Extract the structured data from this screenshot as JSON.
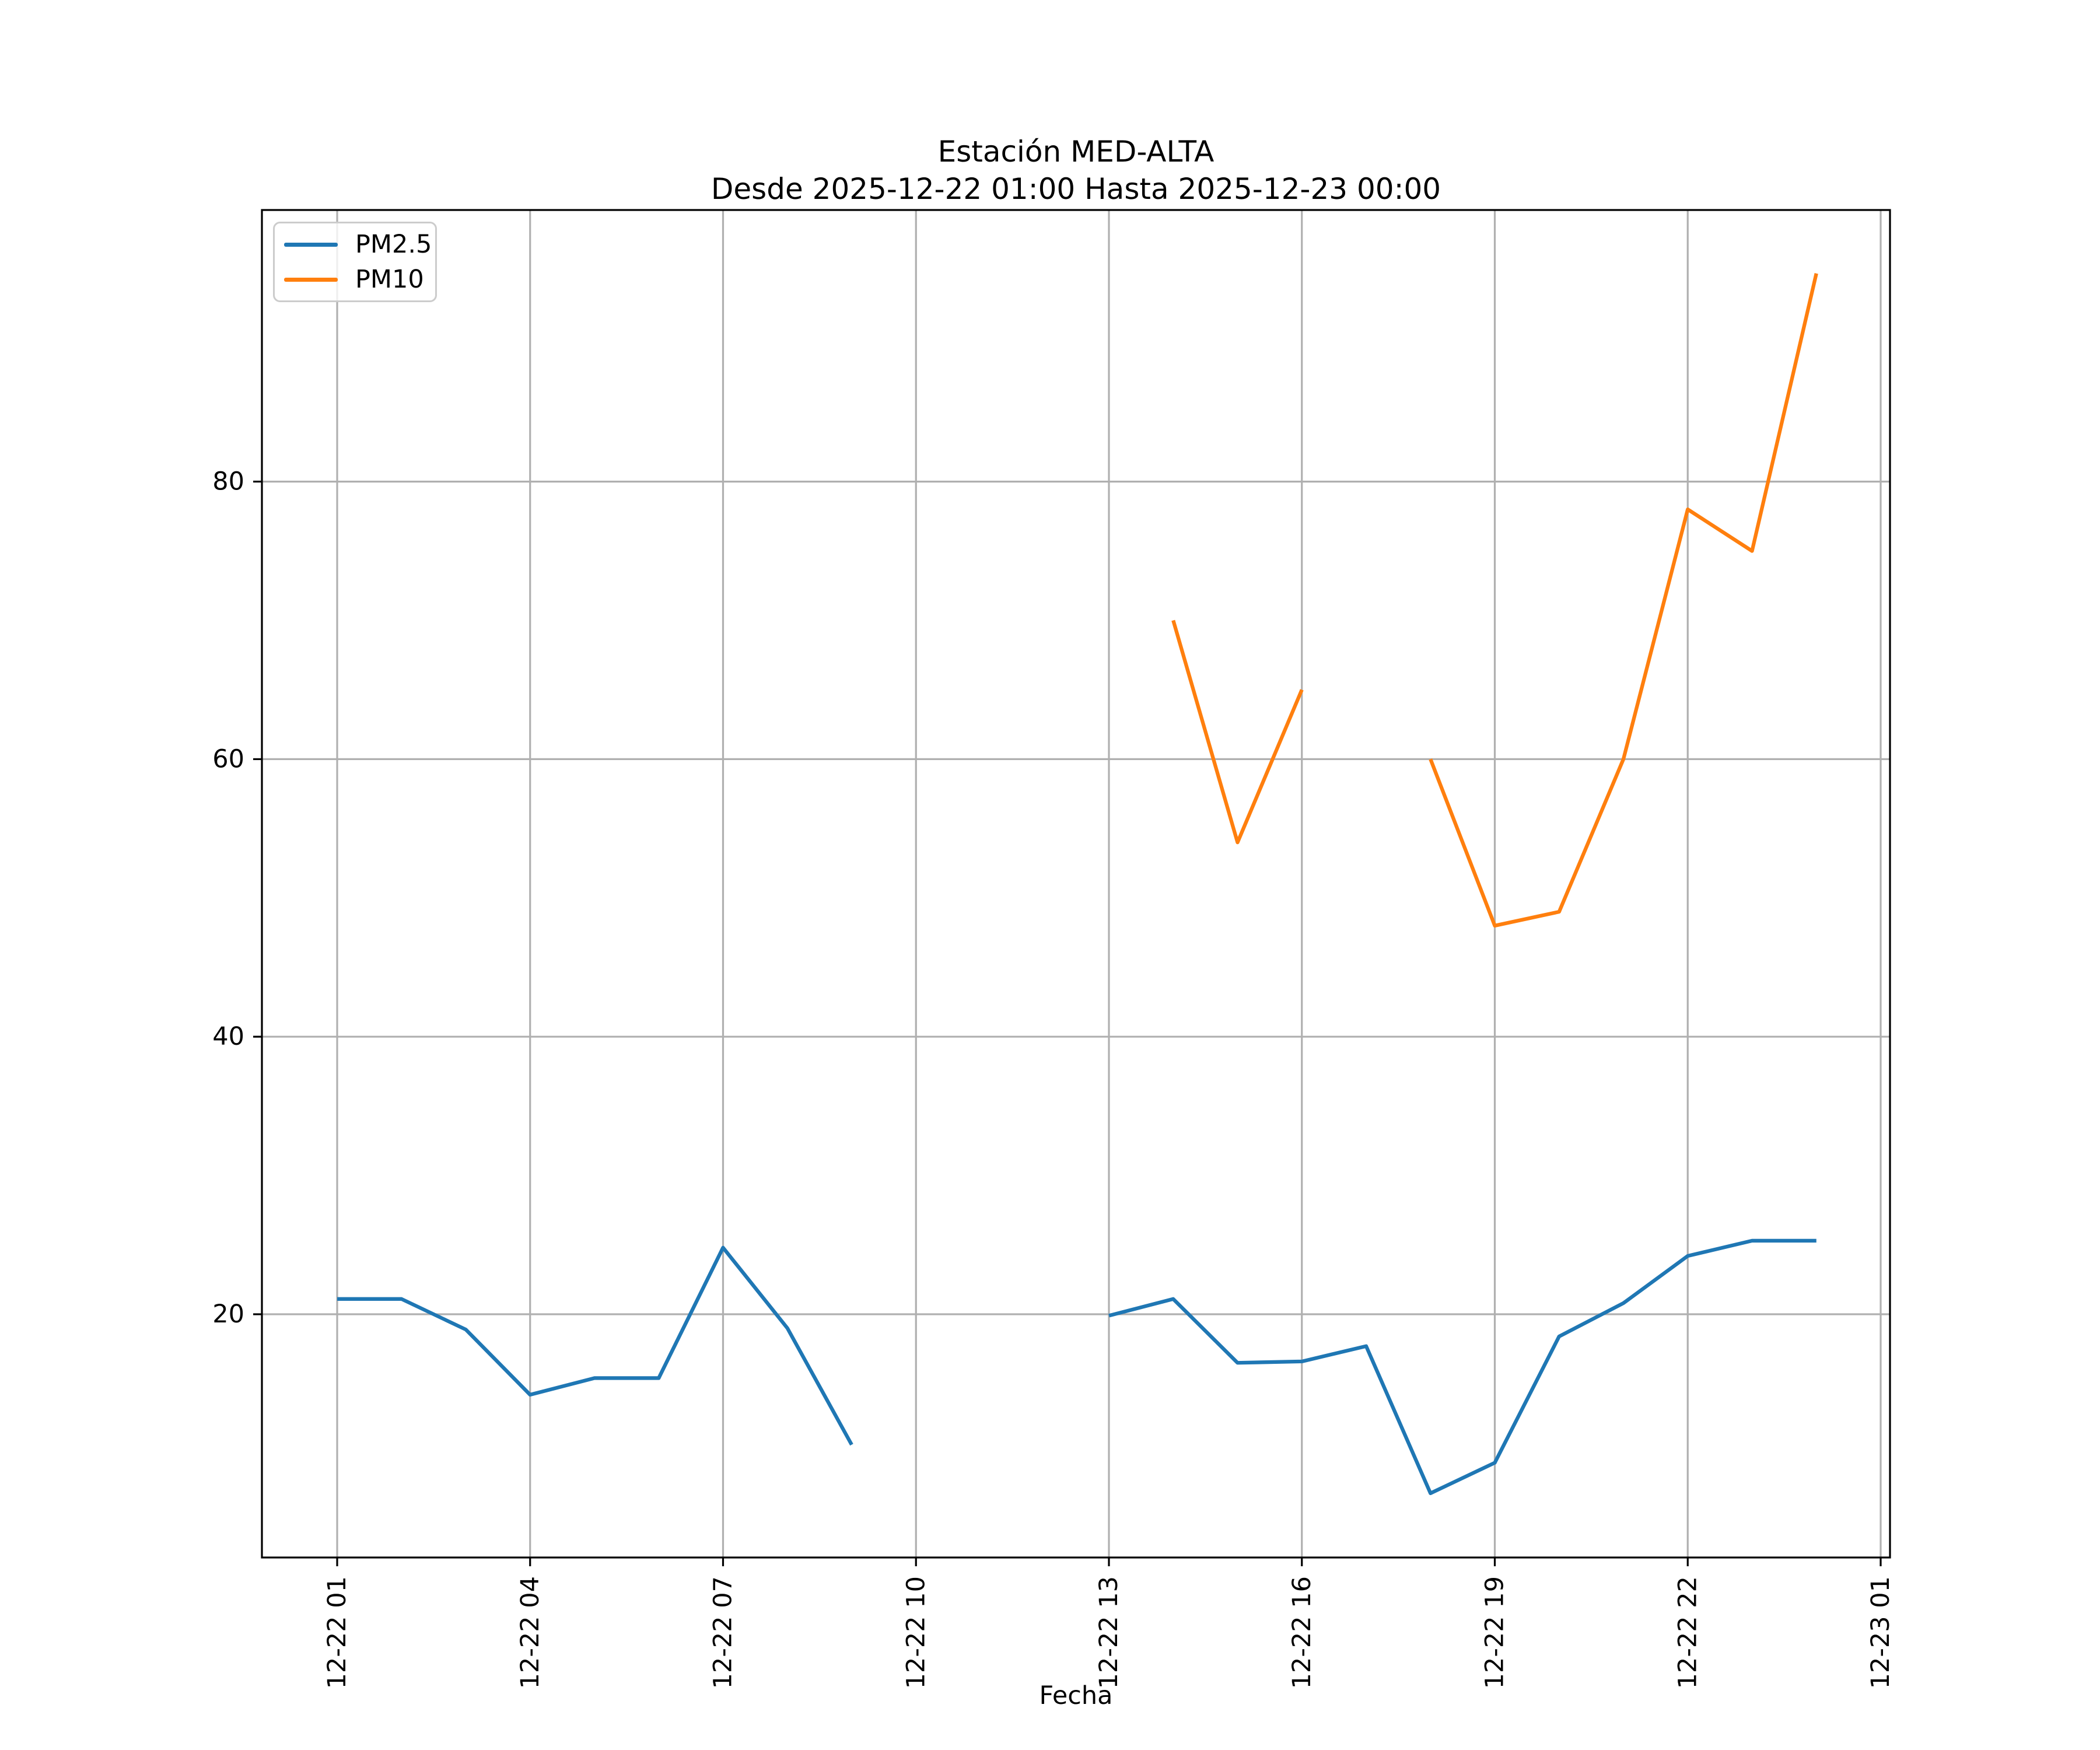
{
  "title": {
    "line1": "Estación MED-ALTA",
    "line2": "Desde 2025-12-22 01:00 Hasta 2025-12-23 00:00"
  },
  "axes": {
    "xlabel": "Fecha"
  },
  "colors": {
    "pm25": "#1f77b4",
    "pm10": "#ff7f0e",
    "grid": "#b0b0b0",
    "spine": "#000000",
    "legend_border": "#cccccc"
  },
  "chart_data": {
    "type": "line",
    "title": "Estación MED-ALTA",
    "subtitle": "Desde 2025-12-22 01:00 Hasta 2025-12-23 00:00",
    "xlabel": "Fecha",
    "ylabel": "",
    "grid": true,
    "legend_position": "upper left",
    "x": [
      "12-22 01:00",
      "12-22 02:00",
      "12-22 03:00",
      "12-22 04:00",
      "12-22 05:00",
      "12-22 06:00",
      "12-22 07:00",
      "12-22 08:00",
      "12-22 09:00",
      "12-22 10:00",
      "12-22 11:00",
      "12-22 12:00",
      "12-22 13:00",
      "12-22 14:00",
      "12-22 15:00",
      "12-22 16:00",
      "12-22 17:00",
      "12-22 18:00",
      "12-22 19:00",
      "12-22 20:00",
      "12-22 21:00",
      "12-22 22:00",
      "12-22 23:00",
      "12-23 00:00"
    ],
    "series": [
      {
        "name": "PM2.5",
        "color": "#1f77b4",
        "values": [
          21.1,
          21.1,
          18.9,
          14.2,
          15.4,
          15.4,
          24.8,
          19.0,
          10.6,
          null,
          null,
          null,
          19.9,
          21.1,
          16.5,
          16.6,
          17.7,
          7.1,
          9.3,
          18.4,
          20.8,
          24.2,
          25.3,
          25.3
        ]
      },
      {
        "name": "PM10",
        "color": "#ff7f0e",
        "values": [
          null,
          null,
          null,
          null,
          null,
          null,
          null,
          null,
          null,
          null,
          null,
          null,
          null,
          70,
          54,
          65,
          null,
          60,
          48,
          49,
          60,
          78,
          75,
          95
        ]
      }
    ],
    "x_ticks": [
      {
        "label": "12-22 01",
        "t": 1
      },
      {
        "label": "12-22 04",
        "t": 4
      },
      {
        "label": "12-22 07",
        "t": 7
      },
      {
        "label": "12-22 10",
        "t": 10
      },
      {
        "label": "12-22 13",
        "t": 13
      },
      {
        "label": "12-22 16",
        "t": 16
      },
      {
        "label": "12-22 19",
        "t": 19
      },
      {
        "label": "12-22 22",
        "t": 22
      },
      {
        "label": "12-23 01",
        "t": 25
      }
    ],
    "y_ticks": [
      20,
      40,
      60,
      80
    ],
    "ylim": [
      2.6,
      99.4
    ],
    "xlim_hours_offset": [
      -0.15,
      25.15
    ]
  }
}
